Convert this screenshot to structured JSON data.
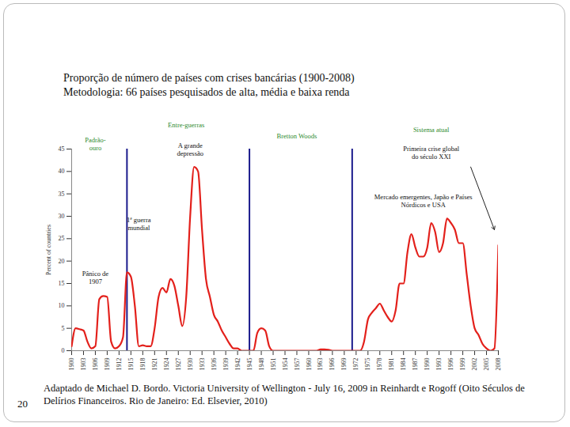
{
  "chart_data": {
    "type": "line",
    "title": "Proporção de número de países com crises bancárias (1900-2008)",
    "subtitle": "Metodologia: 66 países pesquisados de alta, média e baixa renda",
    "y_label": "Percent of countries",
    "x": [
      1900,
      1901,
      1902,
      1903,
      1904,
      1905,
      1906,
      1907,
      1908,
      1909,
      1910,
      1911,
      1912,
      1913,
      1914,
      1915,
      1916,
      1917,
      1918,
      1919,
      1920,
      1921,
      1922,
      1923,
      1924,
      1925,
      1926,
      1927,
      1928,
      1929,
      1930,
      1931,
      1932,
      1933,
      1934,
      1935,
      1936,
      1937,
      1938,
      1939,
      1940,
      1941,
      1942,
      1943,
      1944,
      1945,
      1946,
      1947,
      1948,
      1949,
      1950,
      1951,
      1952,
      1953,
      1954,
      1955,
      1956,
      1957,
      1958,
      1959,
      1960,
      1961,
      1962,
      1963,
      1964,
      1965,
      1966,
      1967,
      1968,
      1969,
      1970,
      1971,
      1972,
      1973,
      1974,
      1975,
      1976,
      1977,
      1978,
      1979,
      1980,
      1981,
      1982,
      1983,
      1984,
      1985,
      1986,
      1987,
      1988,
      1989,
      1990,
      1991,
      1992,
      1993,
      1994,
      1995,
      1996,
      1997,
      1998,
      1999,
      2000,
      2001,
      2002,
      2003,
      2004,
      2005,
      2006,
      2007,
      2008
    ],
    "values": [
      1,
      5,
      4.8,
      4.5,
      2,
      0.5,
      1,
      11.5,
      12.2,
      12,
      2,
      0.5,
      1,
      3,
      17.5,
      16.5,
      10,
      1,
      1.2,
      1,
      1,
      5,
      12,
      14,
      13,
      16,
      14.5,
      10,
      5.5,
      12,
      30,
      41,
      40,
      27,
      16,
      12,
      8,
      6.5,
      4.5,
      3,
      1.5,
      0.5,
      0.5,
      0,
      0,
      0,
      0,
      4,
      5,
      4.5,
      1,
      0,
      0,
      0,
      0,
      0,
      0,
      0,
      0,
      0,
      0,
      0,
      0,
      0.3,
      0.3,
      0.2,
      0,
      0,
      0,
      0,
      0,
      0,
      0,
      0,
      2,
      7,
      8.5,
      9.5,
      10.5,
      9,
      7.5,
      6.5,
      9,
      15,
      15,
      22,
      26,
      23,
      21,
      21,
      23,
      28.5,
      26.5,
      22,
      24,
      29.5,
      28.5,
      27,
      24,
      24,
      17,
      10,
      5,
      3.5,
      1.5,
      0.5,
      0,
      0.5,
      23.5
    ],
    "color": "#e3201b",
    "xlim": [
      1900,
      2008
    ],
    "xticks": [
      1900,
      1903,
      1906,
      1909,
      1912,
      1915,
      1918,
      1921,
      1924,
      1927,
      1930,
      1933,
      1936,
      1939,
      1942,
      1945,
      1948,
      1951,
      1954,
      1957,
      1960,
      1963,
      1966,
      1969,
      1972,
      1975,
      1978,
      1981,
      1984,
      1987,
      1990,
      1993,
      1996,
      1999,
      2002,
      2005,
      2008
    ],
    "ylim": [
      0,
      45
    ],
    "yticks": [
      0,
      5,
      10,
      15,
      20,
      25,
      30,
      35,
      40,
      45
    ],
    "grid": false,
    "dividers": {
      "values": [
        1914,
        1945,
        1971
      ],
      "color": "#1a1a8c"
    },
    "annotations": [
      {
        "text": "Padrão-\nouro",
        "x": 1906,
        "y": 46.2,
        "color": "#2e8b2e"
      },
      {
        "text": "Entre-guerras",
        "x": 1929,
        "y": 50.4,
        "color": "#2e8b2e"
      },
      {
        "text": "A grande\ndepressão",
        "x": 1930,
        "y": 45,
        "color": "#111111"
      },
      {
        "text": "Bretton Woods",
        "x": 1957,
        "y": 48,
        "color": "#2e8b2e"
      },
      {
        "text": "Sistema atual",
        "x": 1991,
        "y": 49.4,
        "color": "#2e8b2e"
      },
      {
        "text": "Primeira crise global\ndo século XXI",
        "x": 1991,
        "y": 44.2,
        "color": "#111111"
      },
      {
        "text": "Mercado emergentes, Japão e Países\nNórdicos e USA",
        "x": 1989,
        "y": 33.4,
        "color": "#111111"
      },
      {
        "text": "1ª guerra\nmundial",
        "x": 1917,
        "y": 28.3,
        "color": "#111111"
      },
      {
        "text": "Pânico de\n1907",
        "x": 1906,
        "y": 16.4,
        "color": "#111111"
      }
    ],
    "arrow": {
      "x1": 2001,
      "y1": 41,
      "x2": 2007,
      "y2": 27
    },
    "page_number": "20",
    "source": "Adaptado de Michael D. Bordo. Victoria University of Wellington - July 16, 2009 in Reinhardt e Rogoff (Oito Séculos de Delírios Financeiros. Rio de Janeiro: Ed. Elsevier, 2010)"
  }
}
